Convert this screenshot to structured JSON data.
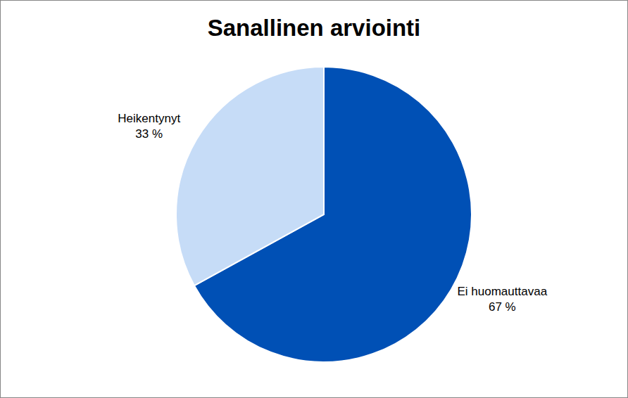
{
  "chart_data": {
    "type": "pie",
    "title": "Sanallinen arviointi",
    "categories": [
      "Ei huomauttavaa",
      "Heikentynyt"
    ],
    "values": [
      67,
      33
    ],
    "value_labels": [
      "67 %",
      "33 %"
    ],
    "colors": [
      "#0050b5",
      "#c6dcf7"
    ],
    "data_labels": true
  }
}
